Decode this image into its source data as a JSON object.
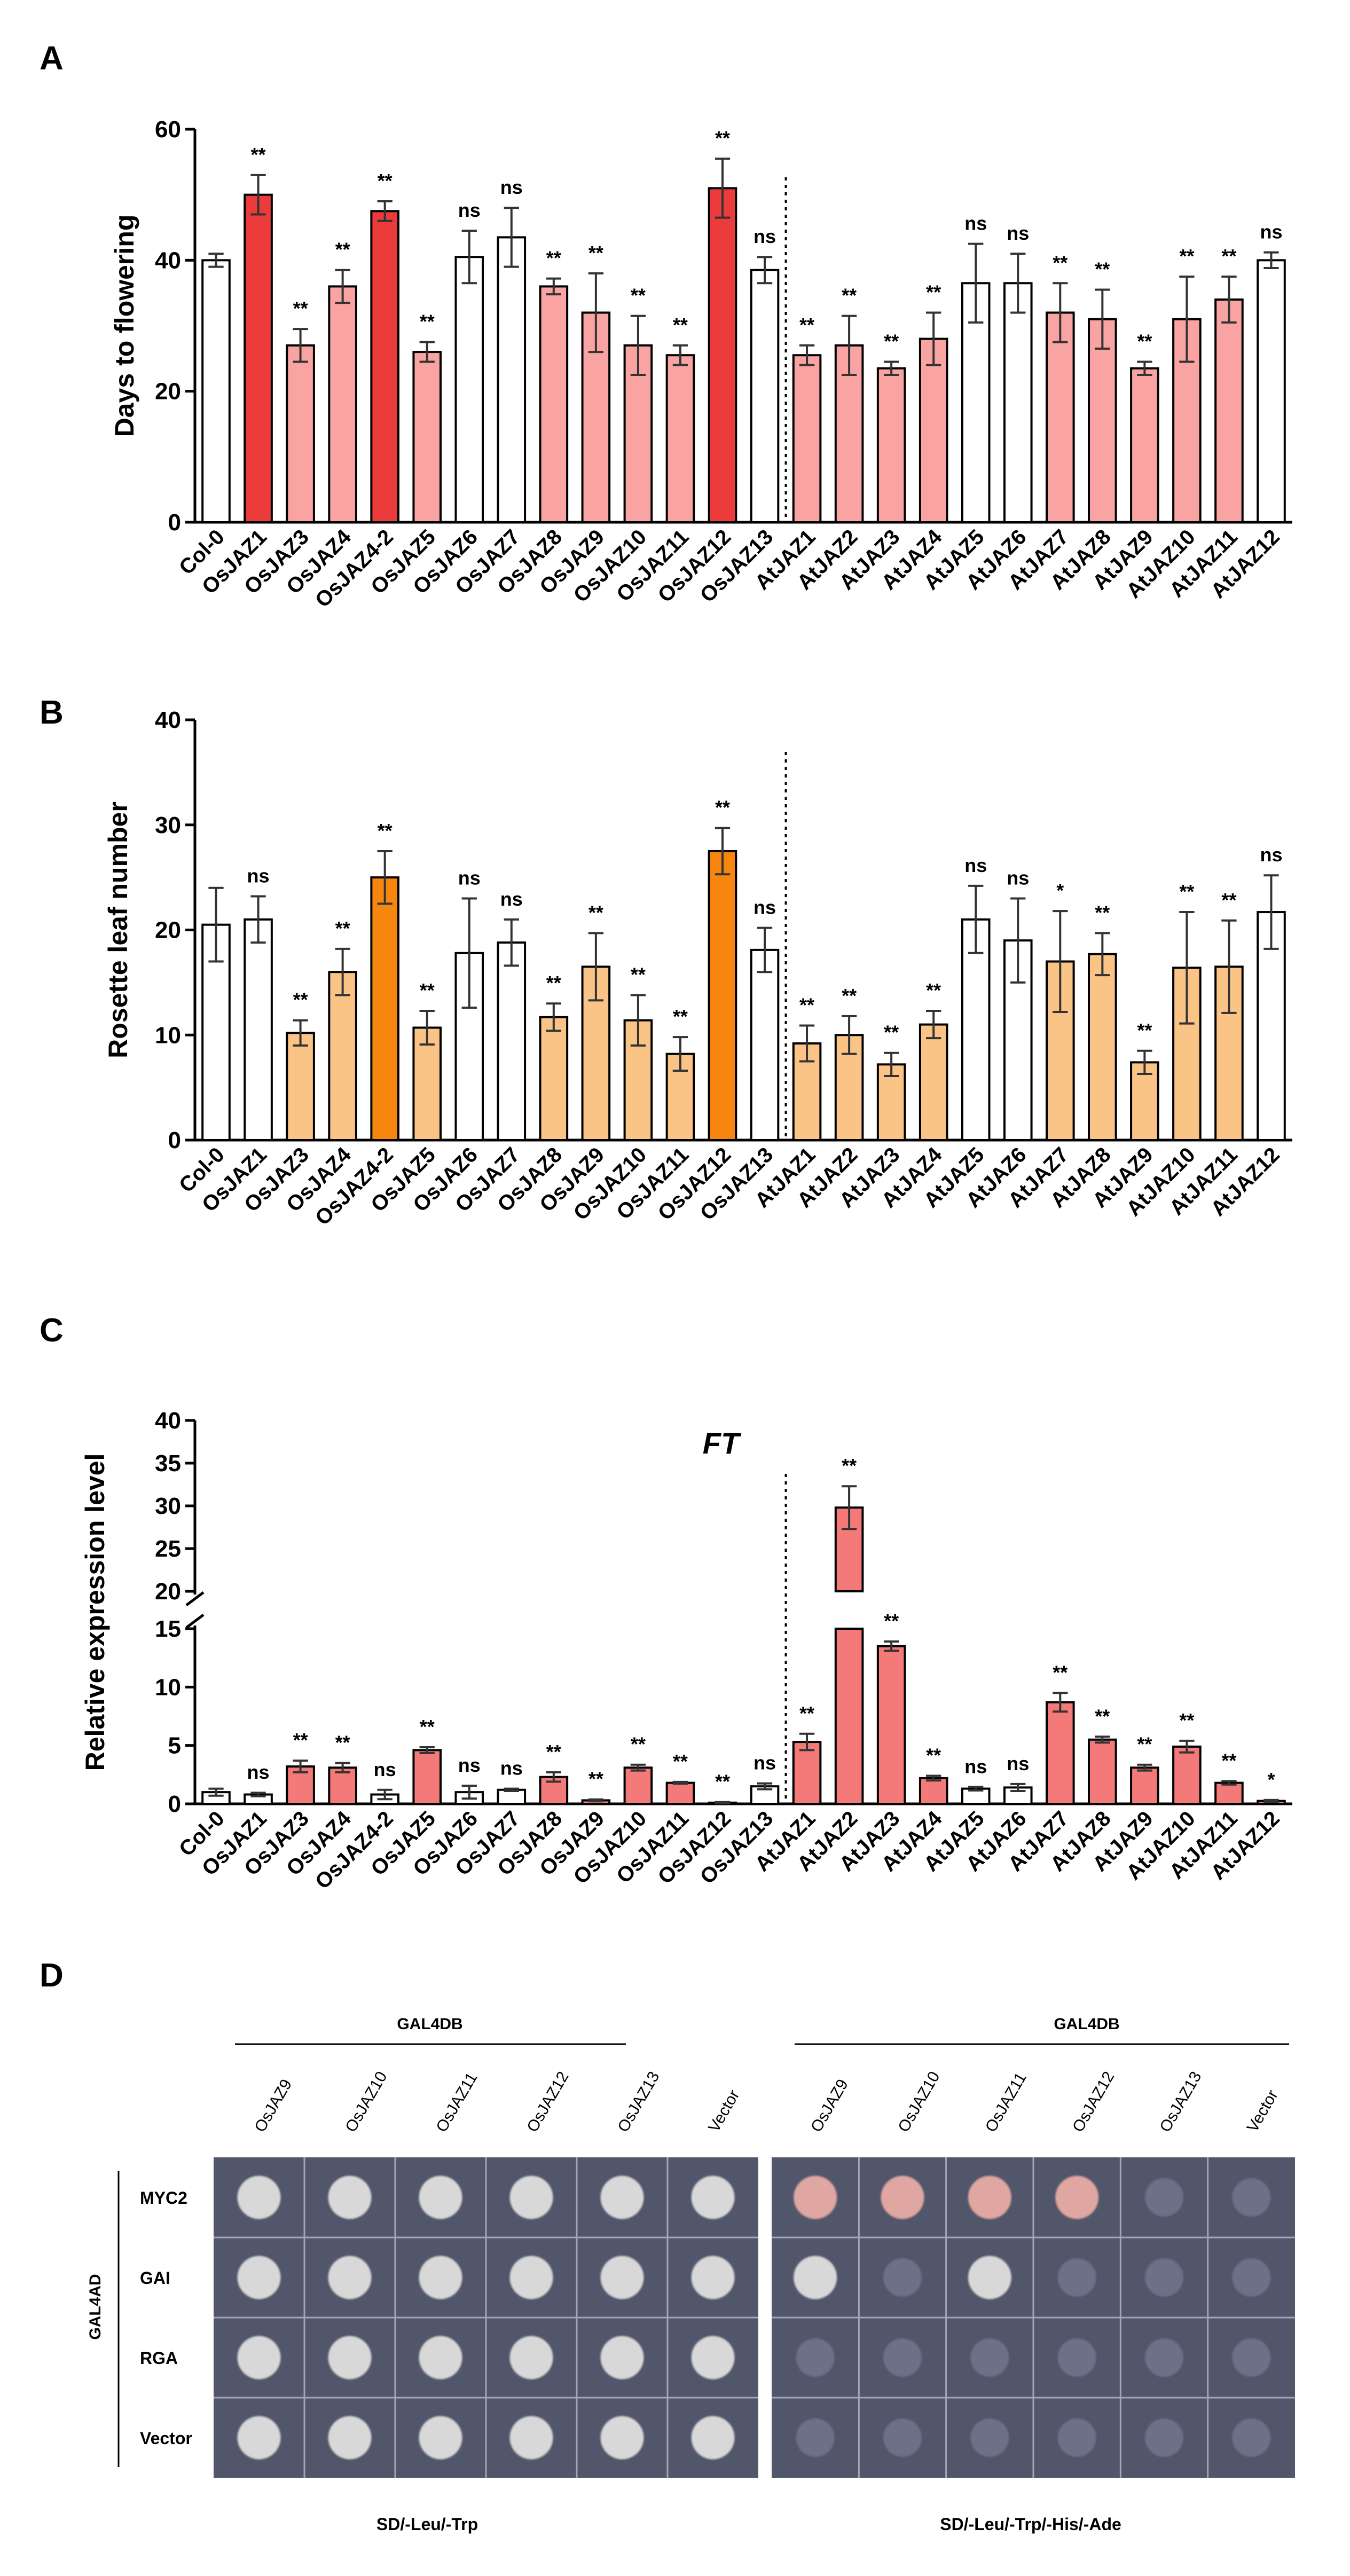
{
  "panel_labels": {
    "a": "A",
    "b": "B",
    "c": "C",
    "d": "D"
  },
  "chart_data": [
    {
      "id": "A",
      "type": "bar",
      "title": "",
      "xlabel": "",
      "ylabel": "Days to flowering",
      "ylim": [
        0,
        60
      ],
      "yticks": [
        0,
        20,
        40,
        60
      ],
      "categories": [
        "Col-0",
        "OsJAZ1",
        "OsJAZ3",
        "OsJAZ4",
        "OsJAZ4-2",
        "OsJAZ5",
        "OsJAZ6",
        "OsJAZ7",
        "OsJAZ8",
        "OsJAZ9",
        "OsJAZ10",
        "OsJAZ11",
        "OsJAZ12",
        "OsJAZ13",
        "AtJAZ1",
        "AtJAZ2",
        "AtJAZ3",
        "AtJAZ4",
        "AtJAZ5",
        "AtJAZ6",
        "AtJAZ7",
        "AtJAZ8",
        "AtJAZ9",
        "AtJAZ10",
        "AtJAZ11",
        "AtJAZ12"
      ],
      "values": [
        40,
        50,
        27,
        36,
        47.5,
        26,
        40.5,
        43.5,
        36,
        32,
        27,
        25.5,
        51,
        38.5,
        25.5,
        27,
        23.5,
        28,
        36.5,
        36.5,
        32,
        31,
        23.5,
        31,
        34,
        40
      ],
      "errors": [
        1,
        3,
        2.5,
        2.5,
        1.5,
        1.5,
        4,
        4.5,
        1.2,
        6,
        4.5,
        1.5,
        4.5,
        2,
        1.5,
        4.5,
        1,
        4,
        6,
        4.5,
        4.5,
        4.5,
        1,
        6.5,
        3.5,
        1.2
      ],
      "significance": [
        "",
        "**",
        "**",
        "**",
        "**",
        "**",
        "ns",
        "ns",
        "**",
        "**",
        "**",
        "**",
        "**",
        "ns",
        "**",
        "**",
        "**",
        "**",
        "ns",
        "ns",
        "**",
        "**",
        "**",
        "**",
        "**",
        "ns"
      ],
      "colors": [
        "#ffffff",
        "#ec3b3b",
        "#f9a3a3",
        "#f9a3a3",
        "#ec3b3b",
        "#f9a3a3",
        "#ffffff",
        "#ffffff",
        "#f9a3a3",
        "#f9a3a3",
        "#f9a3a3",
        "#f9a3a3",
        "#ec3b3b",
        "#ffffff",
        "#f9a3a3",
        "#f9a3a3",
        "#f9a3a3",
        "#f9a3a3",
        "#ffffff",
        "#ffffff",
        "#f9a3a3",
        "#f9a3a3",
        "#f9a3a3",
        "#f9a3a3",
        "#f9a3a3",
        "#ffffff"
      ],
      "divider_after": "OsJAZ13"
    },
    {
      "id": "B",
      "type": "bar",
      "title": "",
      "xlabel": "",
      "ylabel": "Rosette leaf number",
      "ylim": [
        0,
        40
      ],
      "yticks": [
        0,
        10,
        20,
        30,
        40
      ],
      "categories": [
        "Col-0",
        "OsJAZ1",
        "OsJAZ3",
        "OsJAZ4",
        "OsJAZ4-2",
        "OsJAZ5",
        "OsJAZ6",
        "OsJAZ7",
        "OsJAZ8",
        "OsJAZ9",
        "OsJAZ10",
        "OsJAZ11",
        "OsJAZ12",
        "OsJAZ13",
        "AtJAZ1",
        "AtJAZ2",
        "AtJAZ3",
        "AtJAZ4",
        "AtJAZ5",
        "AtJAZ6",
        "AtJAZ7",
        "AtJAZ8",
        "AtJAZ9",
        "AtJAZ10",
        "AtJAZ11",
        "AtJAZ12"
      ],
      "values": [
        20.5,
        21,
        10.2,
        16,
        25,
        10.7,
        17.8,
        18.8,
        11.7,
        16.5,
        11.4,
        8.2,
        27.5,
        18.1,
        9.2,
        10,
        7.2,
        11,
        21,
        19,
        17,
        17.7,
        7.4,
        16.4,
        16.5,
        21.7
      ],
      "errors": [
        3.5,
        2.2,
        1.2,
        2.2,
        2.5,
        1.6,
        5.2,
        2.2,
        1.3,
        3.2,
        2.4,
        1.6,
        2.2,
        2.1,
        1.7,
        1.8,
        1.1,
        1.3,
        3.2,
        4,
        4.8,
        2,
        1.1,
        5.3,
        4.4,
        3.5
      ],
      "significance": [
        "",
        "ns",
        "**",
        "**",
        "**",
        "**",
        "ns",
        "ns",
        "**",
        "**",
        "**",
        "**",
        "**",
        "ns",
        "**",
        "**",
        "**",
        "**",
        "ns",
        "ns",
        "*",
        "**",
        "**",
        "**",
        "**",
        "ns"
      ],
      "colors": [
        "#ffffff",
        "#ffffff",
        "#fbc487",
        "#fbc487",
        "#f7860f",
        "#fbc487",
        "#ffffff",
        "#ffffff",
        "#fbc487",
        "#fbc487",
        "#fbc487",
        "#fbc487",
        "#f7860f",
        "#ffffff",
        "#fbc487",
        "#fbc487",
        "#fbc487",
        "#fbc487",
        "#ffffff",
        "#ffffff",
        "#fbc487",
        "#fbc487",
        "#fbc487",
        "#fbc487",
        "#fbc487",
        "#ffffff"
      ],
      "divider_after": "OsJAZ13"
    },
    {
      "id": "C",
      "type": "bar",
      "title": "FT",
      "xlabel": "",
      "ylabel": "Relative expression level",
      "ylim": [
        0,
        40
      ],
      "axis_break": [
        15,
        20
      ],
      "yticks_lower": [
        0,
        5,
        10,
        15
      ],
      "yticks_upper": [
        20,
        25,
        30,
        35,
        40
      ],
      "categories": [
        "Col-0",
        "OsJAZ1",
        "OsJAZ3",
        "OsJAZ4",
        "OsJAZ4-2",
        "OsJAZ5",
        "OsJAZ6",
        "OsJAZ7",
        "OsJAZ8",
        "OsJAZ9",
        "OsJAZ10",
        "OsJAZ11",
        "OsJAZ12",
        "OsJAZ13",
        "AtJAZ1",
        "AtJAZ2",
        "AtJAZ3",
        "AtJAZ4",
        "AtJAZ5",
        "AtJAZ6",
        "AtJAZ7",
        "AtJAZ8",
        "AtJAZ9",
        "AtJAZ10",
        "AtJAZ11",
        "AtJAZ12"
      ],
      "values": [
        1,
        0.8,
        3.2,
        3.1,
        0.8,
        4.6,
        1,
        1.2,
        2.3,
        0.3,
        3.1,
        1.8,
        0.1,
        1.5,
        5.3,
        29.8,
        13.5,
        2.2,
        1.3,
        1.4,
        8.7,
        5.5,
        3.1,
        4.9,
        1.8,
        0.25
      ],
      "errors": [
        0.3,
        0.15,
        0.5,
        0.4,
        0.4,
        0.25,
        0.55,
        0.1,
        0.4,
        0.08,
        0.25,
        0.08,
        0.05,
        0.25,
        0.7,
        2.5,
        0.4,
        0.2,
        0.15,
        0.3,
        0.8,
        0.25,
        0.25,
        0.5,
        0.15,
        0.08
      ],
      "significance": [
        "",
        "ns",
        "**",
        "**",
        "ns",
        "**",
        "ns",
        "ns",
        "**",
        "**",
        "**",
        "**",
        "**",
        "ns",
        "**",
        "**",
        "**",
        "**",
        "ns",
        "ns",
        "**",
        "**",
        "**",
        "**",
        "**",
        "*"
      ],
      "colors": [
        "#ffffff",
        "#ffffff",
        "#f47a7a",
        "#f47a7a",
        "#ffffff",
        "#f47a7a",
        "#ffffff",
        "#ffffff",
        "#f47a7a",
        "#f47a7a",
        "#f47a7a",
        "#f47a7a",
        "#f47a7a",
        "#ffffff",
        "#f47a7a",
        "#f47a7a",
        "#f47a7a",
        "#f47a7a",
        "#ffffff",
        "#ffffff",
        "#f47a7a",
        "#f47a7a",
        "#f47a7a",
        "#f47a7a",
        "#f47a7a",
        "#f47a7a"
      ],
      "divider_after": "OsJAZ13"
    }
  ],
  "panel_d": {
    "bait_header": "GAL4DB",
    "prey_header": "GAL4AD",
    "columns": [
      "OsJAZ9",
      "OsJAZ10",
      "OsJAZ11",
      "OsJAZ12",
      "OsJAZ13",
      "Vector"
    ],
    "rows": [
      "MYC2",
      "GAI",
      "RGA",
      "Vector"
    ],
    "left_medium": "SD/-Leu/-Trp",
    "right_medium": "SD/-Leu/-Trp/-His/-Ade",
    "left_growth": [
      [
        1,
        1,
        1,
        1,
        1,
        1
      ],
      [
        1,
        1,
        1,
        1,
        1,
        1
      ],
      [
        1,
        1,
        1,
        1,
        1,
        1
      ],
      [
        1,
        1,
        1,
        1,
        1,
        1
      ]
    ],
    "right_growth": [
      [
        1,
        1,
        1,
        1,
        0,
        0
      ],
      [
        1,
        0,
        1,
        0,
        0,
        0
      ],
      [
        0,
        0,
        0,
        0,
        0,
        0
      ],
      [
        0,
        0,
        0,
        0,
        0,
        0
      ]
    ],
    "colors": {
      "plate": "#52566b",
      "colony": "#d8d8d8",
      "pink_colony": "#e0a6a1",
      "faint_colony": "#6c7187"
    }
  }
}
